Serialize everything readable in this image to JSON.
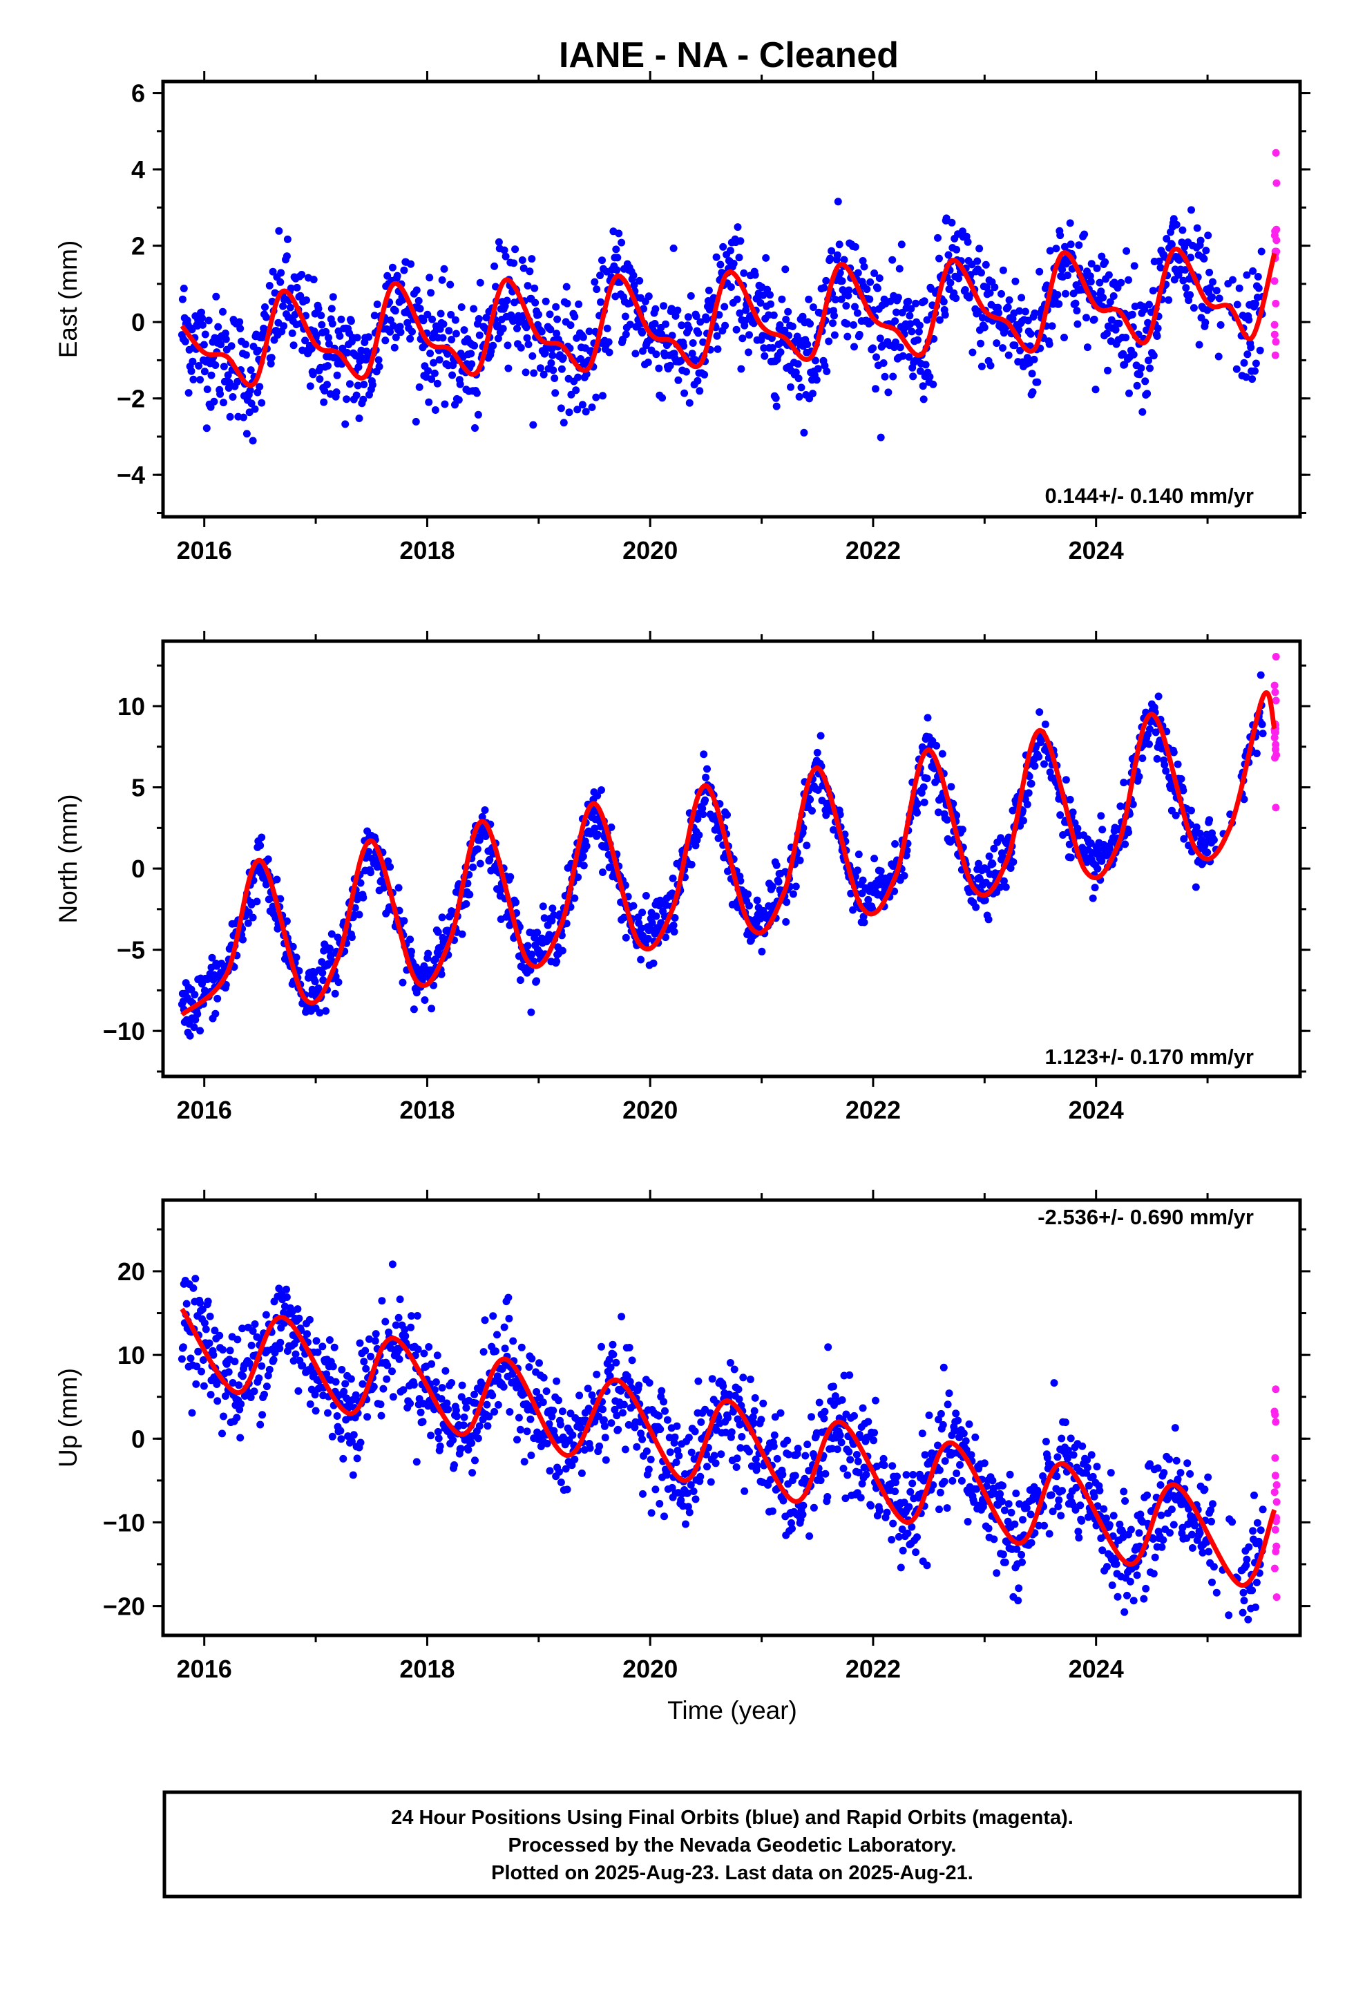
{
  "title": "IANE  - NA - Cleaned",
  "colors": {
    "final_orbits": "#0000ff",
    "rapid_orbits": "#ff22ee",
    "model": "#ff0000"
  },
  "xlabel": "Time (year)",
  "xticks": [
    "2016",
    "2018",
    "2020",
    "2022",
    "2024"
  ],
  "footer": {
    "line1": "24 Hour Positions Using Final Orbits (blue) and Rapid Orbits (magenta).",
    "line2": "Processed by the Nevada Geodetic Laboratory.",
    "line3": "Plotted on 2025-Aug-23. Last data on 2025-Aug-21."
  },
  "chart_data": [
    {
      "type": "scatter",
      "ylabel": "East (mm)",
      "xlim": [
        2015.63,
        2025.83
      ],
      "ylim": [
        -5.1,
        6.3
      ],
      "yticks": [
        "6",
        "4",
        "2",
        "0",
        "−2",
        "−4"
      ],
      "rate": "0.144+/- 0.140 mm/yr",
      "grid": false,
      "series": [
        {
          "type": "line",
          "color": "#ff0000",
          "x": [
            2015.8,
            2016.0,
            2016.2,
            2016.45,
            2016.7,
            2017.0,
            2017.2,
            2017.45,
            2017.7,
            2018.0,
            2018.2,
            2018.45,
            2018.7,
            2019.0,
            2019.2,
            2019.45,
            2019.7,
            2020.0,
            2020.2,
            2020.45,
            2020.7,
            2021.0,
            2021.2,
            2021.45,
            2021.7,
            2022.0,
            2022.2,
            2022.45,
            2022.7,
            2023.0,
            2023.2,
            2023.45,
            2023.7,
            2024.0,
            2024.2,
            2024.45,
            2024.7,
            2025.0,
            2025.2,
            2025.4,
            2025.6
          ],
          "y": [
            -0.1,
            -0.8,
            -0.9,
            -1.6,
            0.8,
            -0.6,
            -0.8,
            -1.4,
            1.0,
            -0.5,
            -0.7,
            -1.3,
            1.1,
            -0.4,
            -0.6,
            -1.2,
            1.2,
            -0.3,
            -0.5,
            -1.1,
            1.3,
            -0.1,
            -0.4,
            -0.9,
            1.5,
            0.1,
            -0.2,
            -0.8,
            1.6,
            0.3,
            0.0,
            -0.7,
            1.8,
            0.4,
            0.3,
            -0.5,
            1.9,
            0.5,
            0.4,
            -0.4,
            1.8
          ]
        }
      ]
    },
    {
      "type": "scatter",
      "ylabel": "North (mm)",
      "xlim": [
        2015.63,
        2025.83
      ],
      "ylim": [
        -12.8,
        14.0
      ],
      "yticks": [
        "10",
        "5",
        "0",
        "−5",
        "−10"
      ],
      "rate": "1.123+/- 0.170 mm/yr",
      "grid": false,
      "series": [
        {
          "type": "line",
          "color": "#ff0000",
          "x": [
            2015.8,
            2016.2,
            2016.5,
            2016.9,
            2017.2,
            2017.5,
            2017.9,
            2018.2,
            2018.5,
            2018.9,
            2019.2,
            2019.5,
            2019.9,
            2020.2,
            2020.5,
            2020.9,
            2021.2,
            2021.5,
            2021.9,
            2022.2,
            2022.5,
            2022.9,
            2023.2,
            2023.5,
            2023.9,
            2024.2,
            2024.5,
            2024.9,
            2025.2,
            2025.5,
            2025.6
          ],
          "y": [
            -9.0,
            -6.5,
            0.5,
            -8.0,
            -5.5,
            1.7,
            -6.9,
            -4.5,
            2.9,
            -5.7,
            -3.5,
            4.0,
            -4.6,
            -2.5,
            5.1,
            -3.6,
            -1.5,
            6.2,
            -2.4,
            -0.5,
            7.3,
            -1.2,
            0.5,
            8.5,
            -0.1,
            1.5,
            9.5,
            1.1,
            2.5,
            10.6,
            8.6
          ]
        }
      ]
    },
    {
      "type": "scatter",
      "ylabel": "Up (mm)",
      "xlim": [
        2015.63,
        2025.83
      ],
      "ylim": [
        -23.5,
        28.5
      ],
      "yticks": [
        "20",
        "10",
        "0",
        "−10",
        "−20"
      ],
      "rate": "-2.536+/- 0.690 mm/yr",
      "grid": false,
      "series": [
        {
          "type": "line",
          "color": "#ff0000",
          "x": [
            2015.8,
            2016.3,
            2016.7,
            2017.3,
            2017.7,
            2018.3,
            2018.7,
            2019.25,
            2019.7,
            2020.3,
            2020.7,
            2021.3,
            2021.7,
            2022.3,
            2022.7,
            2023.3,
            2023.7,
            2024.3,
            2024.7,
            2025.3,
            2025.6
          ],
          "y": [
            15.5,
            5.5,
            14.5,
            3.0,
            12.0,
            0.5,
            9.5,
            -2.0,
            7.0,
            -5.0,
            4.5,
            -7.5,
            2.0,
            -10.0,
            -0.5,
            -12.5,
            -3.0,
            -15.0,
            -5.5,
            -17.5,
            -8.5
          ]
        }
      ]
    }
  ]
}
